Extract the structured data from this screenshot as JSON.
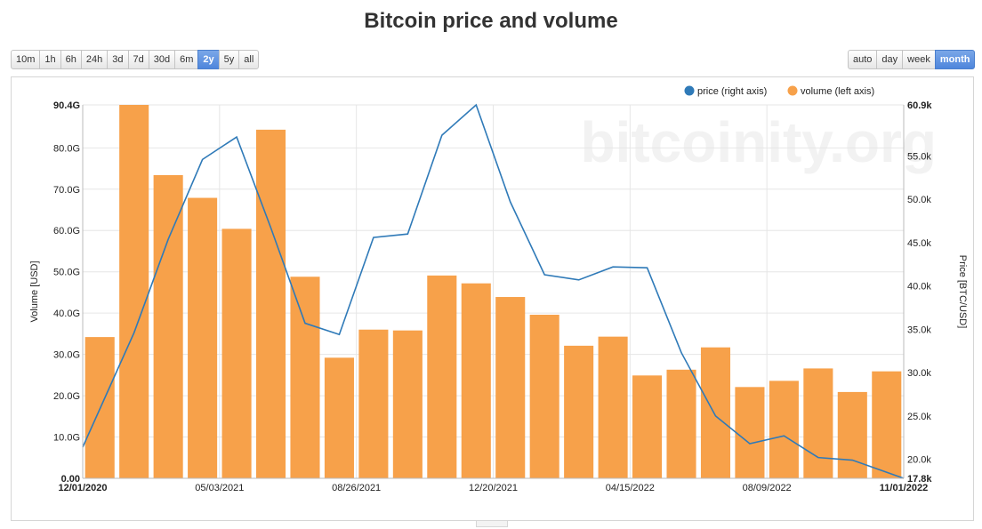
{
  "title": "Bitcoin price and volume",
  "range_buttons": [
    {
      "label": "10m",
      "active": false
    },
    {
      "label": "1h",
      "active": false
    },
    {
      "label": "6h",
      "active": false
    },
    {
      "label": "24h",
      "active": false
    },
    {
      "label": "3d",
      "active": false
    },
    {
      "label": "7d",
      "active": false
    },
    {
      "label": "30d",
      "active": false
    },
    {
      "label": "6m",
      "active": false
    },
    {
      "label": "2y",
      "active": true
    },
    {
      "label": "5y",
      "active": false
    },
    {
      "label": "all",
      "active": false
    }
  ],
  "interval_buttons": [
    {
      "label": "auto",
      "active": false
    },
    {
      "label": "day",
      "active": false
    },
    {
      "label": "week",
      "active": false
    },
    {
      "label": "month",
      "active": true
    }
  ],
  "watermark": "bitcoinity.org",
  "chart_data": {
    "type": "bar+line",
    "title": "Bitcoin price and volume",
    "legend_position": "top-right",
    "grid": true,
    "x_start": "12/01/2020",
    "x_end": "11/01/2022",
    "x_ticks": [
      "12/01/2020",
      "05/03/2021",
      "08/26/2021",
      "12/20/2021",
      "04/15/2022",
      "08/09/2022",
      "11/01/2022"
    ],
    "x_tick_bold": [
      true,
      false,
      false,
      false,
      false,
      false,
      true
    ],
    "left_axis": {
      "label": "Volume [USD]",
      "range": [
        0,
        90.4
      ],
      "unit": "G",
      "ticks": [
        "0.00",
        "10.0G",
        "20.0G",
        "30.0G",
        "40.0G",
        "50.0G",
        "60.0G",
        "70.0G",
        "80.0G",
        "90.4G"
      ],
      "tick_values": [
        0,
        10,
        20,
        30,
        40,
        50,
        60,
        70,
        80,
        90.4
      ]
    },
    "right_axis": {
      "label": "Price [BTC/USD]",
      "range": [
        17.8,
        60.9
      ],
      "unit": "k",
      "ticks": [
        "17.8k",
        "20.0k",
        "25.0k",
        "30.0k",
        "35.0k",
        "40.0k",
        "45.0k",
        "50.0k",
        "55.0k",
        "60.9k"
      ],
      "tick_values": [
        17.8,
        20,
        25,
        30,
        35,
        40,
        45,
        50,
        55,
        60.9
      ]
    },
    "months": [
      "2020-12",
      "2021-01",
      "2021-02",
      "2021-03",
      "2021-04",
      "2021-05",
      "2021-06",
      "2021-07",
      "2021-08",
      "2021-09",
      "2021-10",
      "2021-11",
      "2021-12",
      "2022-01",
      "2022-02",
      "2022-03",
      "2022-04",
      "2022-05",
      "2022-06",
      "2022-07",
      "2022-08",
      "2022-09",
      "2022-10",
      "2022-11"
    ],
    "series": [
      {
        "name": "volume (left axis)",
        "axis": "left",
        "color": "#f7a14a",
        "kind": "bar",
        "values": [
          34.2,
          90.4,
          73.4,
          67.9,
          60.4,
          84.4,
          48.8,
          29.2,
          36.0,
          35.8,
          49.1,
          47.2,
          43.9,
          39.6,
          32.1,
          34.3,
          24.9,
          26.3,
          31.7,
          22.1,
          23.6,
          26.6,
          20.9,
          25.9
        ]
      },
      {
        "name": "price (right axis)",
        "axis": "right",
        "color": "#2f7ab8",
        "kind": "line",
        "values": [
          21.4,
          34.6,
          45.4,
          54.6,
          57.2,
          46.7,
          35.7,
          34.4,
          45.6,
          46.0,
          57.4,
          60.9,
          49.7,
          41.3,
          40.7,
          42.2,
          42.1,
          32.3,
          25.0,
          21.8,
          22.7,
          20.2,
          19.9,
          17.8
        ]
      }
    ]
  }
}
